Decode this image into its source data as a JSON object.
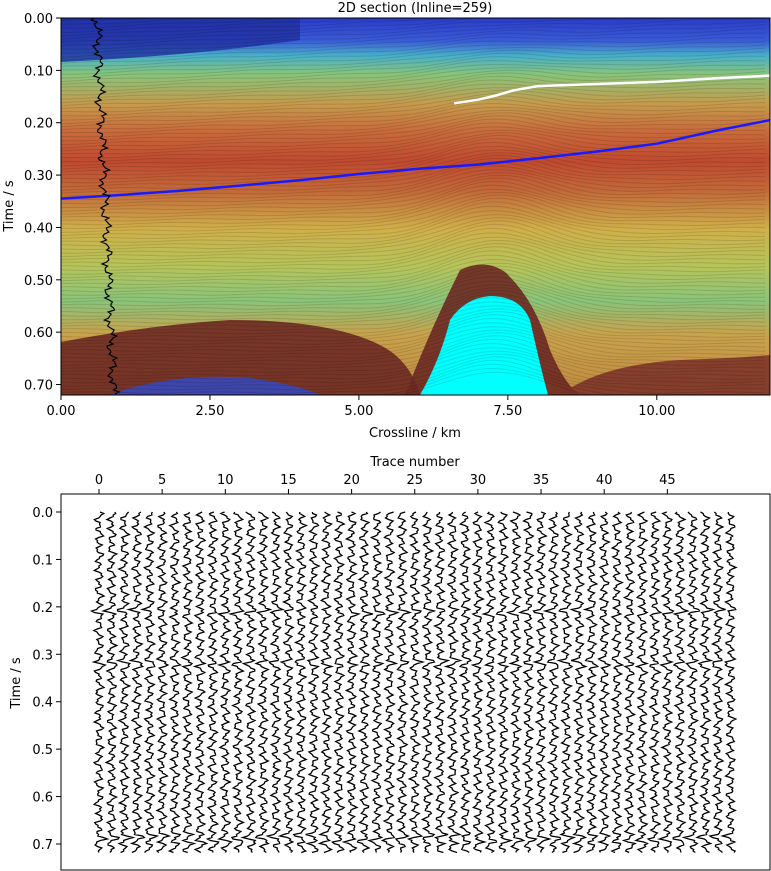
{
  "chart_data": [
    {
      "type": "heatmap",
      "title": "2D section (Inline=259)",
      "xlabel": "Crossline / km",
      "ylabel": "Time / s",
      "xlim": [
        0,
        11.9
      ],
      "ylim": [
        0.72,
        0.0
      ],
      "x_ticks": [
        0,
        2.5,
        5.0,
        7.5,
        10.0
      ],
      "x_tick_labels": [
        "0.00",
        "2.50",
        "5.00",
        "7.50",
        "10.00"
      ],
      "y_ticks": [
        0.0,
        0.1,
        0.2,
        0.3,
        0.4,
        0.5,
        0.6,
        0.7
      ],
      "y_tick_labels": [
        "0.00",
        "0.10",
        "0.20",
        "0.30",
        "0.40",
        "0.50",
        "0.60",
        "0.70"
      ],
      "colormap": "jet",
      "grid": false,
      "horizons": [
        {
          "color": "#1a1aff",
          "x": [
            0,
            1,
            2,
            3,
            4,
            5,
            6,
            7,
            8,
            9,
            10,
            11,
            11.9
          ],
          "y": [
            0.345,
            0.338,
            0.33,
            0.32,
            0.31,
            0.298,
            0.288,
            0.28,
            0.268,
            0.255,
            0.24,
            0.215,
            0.195
          ]
        },
        {
          "color": "#ffffff",
          "x": [
            6.6,
            7.0,
            7.3,
            7.6,
            8.0,
            8.5,
            9.0,
            10.0,
            11.0,
            11.9
          ],
          "y": [
            0.163,
            0.156,
            0.148,
            0.138,
            0.13,
            0.128,
            0.126,
            0.122,
            0.115,
            0.11
          ]
        }
      ],
      "salt_body_color": "#00ffff",
      "well_log": {
        "color": "#000000",
        "x_center_km": 0.7
      }
    },
    {
      "type": "line",
      "subtype": "seismic-wiggle",
      "xlabel": "Trace number",
      "ylabel": "Time / s",
      "x_ticks": [
        0,
        5,
        10,
        15,
        20,
        25,
        30,
        35,
        40,
        45
      ],
      "y_ticks": [
        0.0,
        0.1,
        0.2,
        0.3,
        0.4,
        0.5,
        0.6,
        0.7
      ],
      "y_tick_labels": [
        "0.0",
        "0.1",
        "0.2",
        "0.3",
        "0.4",
        "0.5",
        "0.6",
        "0.7"
      ],
      "trace_count": 51,
      "time_range": [
        0.0,
        0.72
      ],
      "line_color": "#000000",
      "grid": false
    }
  ]
}
